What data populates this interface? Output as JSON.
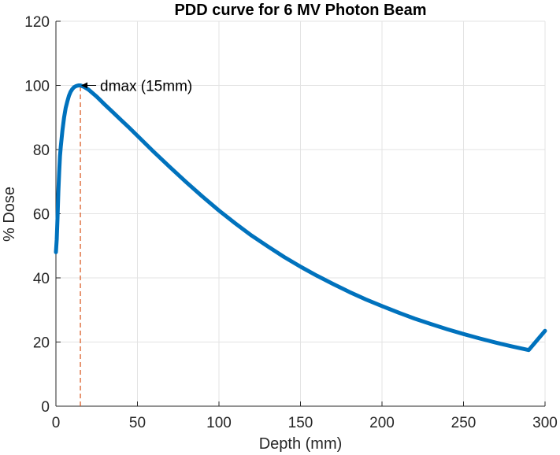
{
  "chart_data": {
    "type": "line",
    "title": "PDD curve for 6 MV Photon Beam",
    "xlabel": "Depth (mm)",
    "ylabel": "% Dose",
    "xlim": [
      0,
      300
    ],
    "ylim": [
      0,
      120
    ],
    "xticks": [
      0,
      50,
      100,
      150,
      200,
      250,
      300
    ],
    "yticks": [
      0,
      20,
      40,
      60,
      80,
      100,
      120
    ],
    "grid": true,
    "legend": "none",
    "series": [
      {
        "color": "#0072BD",
        "x": [
          0,
          0.5,
          1,
          1.5,
          2,
          2.5,
          3,
          4,
          5,
          6,
          7,
          8,
          9,
          10,
          11,
          12,
          13,
          14,
          15,
          17,
          20,
          25,
          30,
          35,
          40,
          45,
          50,
          60,
          70,
          80,
          90,
          100,
          110,
          120,
          130,
          140,
          150,
          160,
          170,
          180,
          190,
          200,
          210,
          220,
          230,
          240,
          250,
          260,
          270,
          280,
          290,
          300
        ],
        "y": [
          48,
          52,
          59,
          67,
          73,
          78,
          81,
          86,
          90,
          93,
          95,
          96.8,
          98,
          98.8,
          99.4,
          99.7,
          99.9,
          100,
          100,
          99.6,
          98.7,
          96.5,
          94,
          91.6,
          89.2,
          86.8,
          84.3,
          79.3,
          74.5,
          69.8,
          65.3,
          61,
          57,
          53.2,
          49.8,
          46.5,
          43.5,
          40.7,
          38.1,
          35.6,
          33.3,
          31.2,
          29.2,
          27.3,
          25.6,
          24,
          22.5,
          21.1,
          19.8,
          18.6,
          17.5,
          23.5
        ]
      }
    ],
    "reference_line": {
      "x": 15,
      "color": "#D95319",
      "style": "dashed"
    },
    "annotations": [
      {
        "text": "dmax (15mm)",
        "x": 15,
        "y": 100
      }
    ]
  }
}
